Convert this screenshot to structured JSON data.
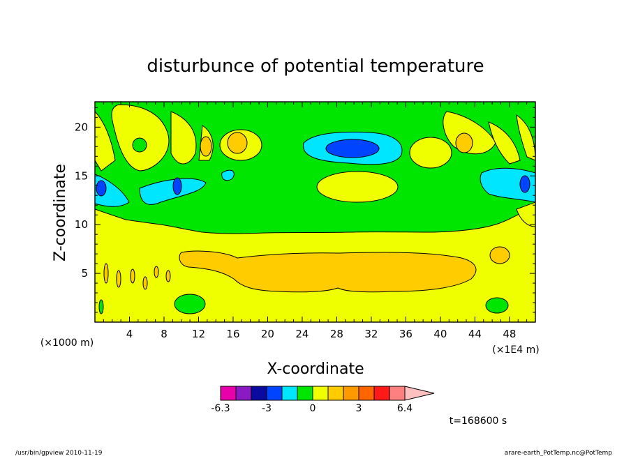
{
  "title": "disturbunce of potential temperature",
  "x_axis": {
    "label": "X-coordinate",
    "unit_left": "(×1000 m)",
    "unit_right": "(×1E4 m)",
    "ticks": [
      "4",
      "8",
      "12",
      "16",
      "20",
      "24",
      "28",
      "32",
      "36",
      "40",
      "44",
      "48"
    ]
  },
  "y_axis": {
    "label": "Z-coordinate",
    "ticks": [
      "5",
      "10",
      "15",
      "20"
    ]
  },
  "colorbar": {
    "tick_labels": [
      "-6.3",
      "-3",
      "0",
      "3",
      "6.4"
    ],
    "colors": [
      "#e800aa",
      "#8a1ac2",
      "#0a0aa0",
      "#0044ff",
      "#00e6ff",
      "#00e600",
      "#f0ff00",
      "#ffcc00",
      "#ff9900",
      "#ff6600",
      "#ff1a1a",
      "#ff8080",
      "#ffc0c0"
    ]
  },
  "time_label": "t=168600 s",
  "footer": {
    "left": "/usr/bin/gpview  2010-11-19",
    "right": "arare-earth_PotTemp.nc@PotTemp"
  },
  "chart_data": {
    "type": "heatmap",
    "title": "disturbunce of potential temperature",
    "xlabel": "X-coordinate",
    "ylabel": "Z-coordinate",
    "x_unit": "(×1E4 m)",
    "xlim": [
      0,
      51
    ],
    "ylim": [
      0,
      22.6
    ],
    "x_ticks": [
      4,
      8,
      12,
      16,
      20,
      24,
      28,
      32,
      36,
      40,
      44,
      48
    ],
    "y_ticks": [
      5,
      10,
      15,
      20
    ],
    "levels": [
      -6.3,
      -3,
      0,
      3,
      6.4
    ],
    "time": "t=168600 s",
    "fields": [
      {
        "value_sign": "positive",
        "level": "yellow",
        "region": "lower layer z<9"
      },
      {
        "value_sign": "positive",
        "level": "orange",
        "region": "core x 10-44, z 3-7.5"
      },
      {
        "value_sign": "negative",
        "level": "cyan/blue",
        "region": "upper cell x 24-35, z 16.5-20"
      },
      {
        "value_sign": "positive",
        "level": "yellow",
        "region": "upper cell x 24-35, z 12.5-16"
      }
    ]
  }
}
